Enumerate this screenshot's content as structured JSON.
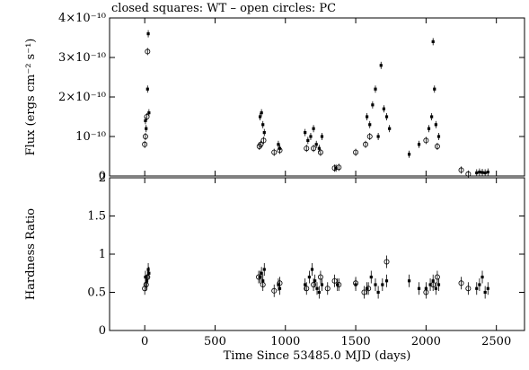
{
  "chart_data": [
    {
      "type": "scatter",
      "title": "closed squares: WT – open circles: PC",
      "ylabel": "Flux (ergs cm⁻² s⁻¹)",
      "xlabel": "",
      "xlim": [
        -250,
        2700
      ],
      "ylim": [
        0,
        4e-10
      ],
      "y_ticks": [
        {
          "value": 0,
          "label": "0"
        },
        {
          "value": 1e-10,
          "label": "10⁻¹⁰"
        },
        {
          "value": 2e-10,
          "label": "2×10⁻¹⁰"
        },
        {
          "value": 3e-10,
          "label": "3×10⁻¹⁰"
        },
        {
          "value": 4e-10,
          "label": "4×10⁻¹⁰"
        }
      ],
      "grid": false,
      "series": [
        {
          "name": "WT",
          "marker": "closed-square",
          "points": [
            [
              5,
              1.4e-10
            ],
            [
              10,
              1.2e-10
            ],
            [
              20,
              2.2e-10
            ],
            [
              25,
              3.6e-10
            ],
            [
              30,
              1.6e-10
            ],
            [
              820,
              1.5e-10
            ],
            [
              830,
              1.6e-10
            ],
            [
              840,
              1.3e-10
            ],
            [
              850,
              1.1e-10
            ],
            [
              950,
              8e-11
            ],
            [
              960,
              7e-11
            ],
            [
              1140,
              1.1e-10
            ],
            [
              1160,
              9e-11
            ],
            [
              1180,
              1e-10
            ],
            [
              1200,
              1.2e-10
            ],
            [
              1220,
              8e-11
            ],
            [
              1240,
              7e-11
            ],
            [
              1260,
              1e-10
            ],
            [
              1360,
              2e-11
            ],
            [
              1580,
              1.5e-10
            ],
            [
              1600,
              1.3e-10
            ],
            [
              1620,
              1.8e-10
            ],
            [
              1640,
              2.2e-10
            ],
            [
              1660,
              1e-10
            ],
            [
              1680,
              2.8e-10
            ],
            [
              1700,
              1.7e-10
            ],
            [
              1720,
              1.5e-10
            ],
            [
              1740,
              1.2e-10
            ],
            [
              1880,
              5.5e-11
            ],
            [
              1950,
              8e-11
            ],
            [
              2020,
              1.2e-10
            ],
            [
              2040,
              1.5e-10
            ],
            [
              2050,
              3.4e-10
            ],
            [
              2060,
              2.2e-10
            ],
            [
              2070,
              1.3e-10
            ],
            [
              2090,
              1e-10
            ],
            [
              2360,
              8e-12
            ],
            [
              2380,
              1e-11
            ],
            [
              2400,
              9e-12
            ],
            [
              2420,
              8e-12
            ],
            [
              2440,
              1e-11
            ]
          ]
        },
        {
          "name": "PC",
          "marker": "open-circle",
          "points": [
            [
              0,
              8e-11
            ],
            [
              5,
              1e-10
            ],
            [
              15,
              1.5e-10
            ],
            [
              20,
              3.15e-10
            ],
            [
              815,
              7.5e-11
            ],
            [
              825,
              8e-11
            ],
            [
              845,
              9e-11
            ],
            [
              920,
              6e-11
            ],
            [
              960,
              6.5e-11
            ],
            [
              1150,
              7e-11
            ],
            [
              1200,
              7e-11
            ],
            [
              1250,
              6e-11
            ],
            [
              1350,
              2e-11
            ],
            [
              1380,
              2.2e-11
            ],
            [
              1500,
              6e-11
            ],
            [
              1570,
              8e-11
            ],
            [
              1600,
              1e-10
            ],
            [
              2000,
              9e-11
            ],
            [
              2080,
              7.5e-11
            ],
            [
              2250,
              1.5e-11
            ],
            [
              2300,
              5e-12
            ]
          ]
        }
      ]
    },
    {
      "type": "scatter",
      "title": "",
      "ylabel": "Hardness Ratio",
      "xlabel": "Time Since 53485.0 MJD (days)",
      "xlim": [
        -250,
        2700
      ],
      "ylim": [
        0,
        2
      ],
      "x_ticks": [
        0,
        500,
        1000,
        1500,
        2000,
        2500
      ],
      "y_ticks": [
        0,
        0.5,
        1,
        1.5,
        2
      ],
      "grid": false,
      "series": [
        {
          "name": "WT",
          "marker": "closed-square",
          "points": [
            [
              5,
              0.7
            ],
            [
              15,
              0.65
            ],
            [
              25,
              0.8
            ],
            [
              30,
              0.75
            ],
            [
              820,
              0.7
            ],
            [
              830,
              0.75
            ],
            [
              840,
              0.65
            ],
            [
              850,
              0.8
            ],
            [
              950,
              0.6
            ],
            [
              960,
              0.55
            ],
            [
              1140,
              0.6
            ],
            [
              1170,
              0.7
            ],
            [
              1190,
              0.8
            ],
            [
              1210,
              0.65
            ],
            [
              1225,
              0.55
            ],
            [
              1240,
              0.5
            ],
            [
              1260,
              0.6
            ],
            [
              1370,
              0.6
            ],
            [
              1500,
              0.6
            ],
            [
              1580,
              0.55
            ],
            [
              1610,
              0.7
            ],
            [
              1640,
              0.6
            ],
            [
              1660,
              0.5
            ],
            [
              1690,
              0.6
            ],
            [
              1720,
              0.65
            ],
            [
              1880,
              0.65
            ],
            [
              1950,
              0.55
            ],
            [
              2000,
              0.55
            ],
            [
              2030,
              0.6
            ],
            [
              2050,
              0.65
            ],
            [
              2070,
              0.55
            ],
            [
              2090,
              0.6
            ],
            [
              2360,
              0.55
            ],
            [
              2380,
              0.6
            ],
            [
              2400,
              0.7
            ],
            [
              2420,
              0.5
            ],
            [
              2440,
              0.55
            ]
          ]
        },
        {
          "name": "PC",
          "marker": "open-circle",
          "points": [
            [
              0,
              0.55
            ],
            [
              10,
              0.6
            ],
            [
              20,
              0.7
            ],
            [
              810,
              0.7
            ],
            [
              840,
              0.6
            ],
            [
              920,
              0.52
            ],
            [
              960,
              0.62
            ],
            [
              1150,
              0.55
            ],
            [
              1200,
              0.6
            ],
            [
              1250,
              0.7
            ],
            [
              1300,
              0.55
            ],
            [
              1350,
              0.65
            ],
            [
              1380,
              0.6
            ],
            [
              1500,
              0.62
            ],
            [
              1560,
              0.5
            ],
            [
              1590,
              0.55
            ],
            [
              1720,
              0.9
            ],
            [
              2000,
              0.5
            ],
            [
              2050,
              0.6
            ],
            [
              2080,
              0.7
            ],
            [
              2250,
              0.62
            ],
            [
              2300,
              0.55
            ]
          ]
        }
      ]
    }
  ]
}
